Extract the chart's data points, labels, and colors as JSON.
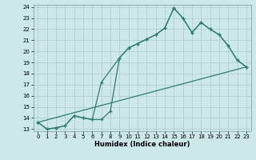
{
  "xlabel": "Humidex (Indice chaleur)",
  "background_color": "#cce8e8",
  "grid_color": "#b0c8c8",
  "line_color": "#2e7d6e",
  "xlim": [
    -0.5,
    23.5
  ],
  "ylim": [
    12.8,
    24.2
  ],
  "xticks": [
    0,
    1,
    2,
    3,
    4,
    5,
    6,
    7,
    8,
    9,
    10,
    11,
    12,
    13,
    14,
    15,
    16,
    17,
    18,
    19,
    20,
    21,
    22,
    23
  ],
  "yticks": [
    13,
    14,
    15,
    16,
    17,
    18,
    19,
    20,
    21,
    22,
    23,
    24
  ],
  "line1_x": [
    0,
    1,
    2,
    3,
    4,
    5,
    6,
    7,
    8,
    9,
    10,
    11,
    12,
    13,
    14,
    15,
    16,
    17,
    18,
    19,
    20,
    21,
    22,
    23
  ],
  "line1_y": [
    13.6,
    13.0,
    13.1,
    13.3,
    14.2,
    14.0,
    13.85,
    13.85,
    14.6,
    19.4,
    20.3,
    20.7,
    21.1,
    21.5,
    22.1,
    23.9,
    23.0,
    21.7,
    22.6,
    22.0,
    21.5,
    20.5,
    19.2,
    18.6
  ],
  "line2_x": [
    0,
    1,
    2,
    3,
    4,
    5,
    6,
    7,
    9,
    10,
    11,
    12,
    13,
    14,
    15,
    16,
    17,
    18,
    19,
    20,
    21,
    22,
    23
  ],
  "line2_y": [
    13.6,
    13.0,
    13.1,
    13.3,
    14.2,
    14.0,
    13.85,
    17.2,
    19.4,
    20.3,
    20.7,
    21.1,
    21.5,
    22.1,
    23.9,
    23.0,
    21.7,
    22.6,
    22.0,
    21.5,
    20.5,
    19.2,
    18.6
  ],
  "line3_x": [
    0,
    23
  ],
  "line3_y": [
    13.6,
    18.6
  ],
  "xlabel_fontsize": 6.0,
  "tick_fontsize": 5.0
}
